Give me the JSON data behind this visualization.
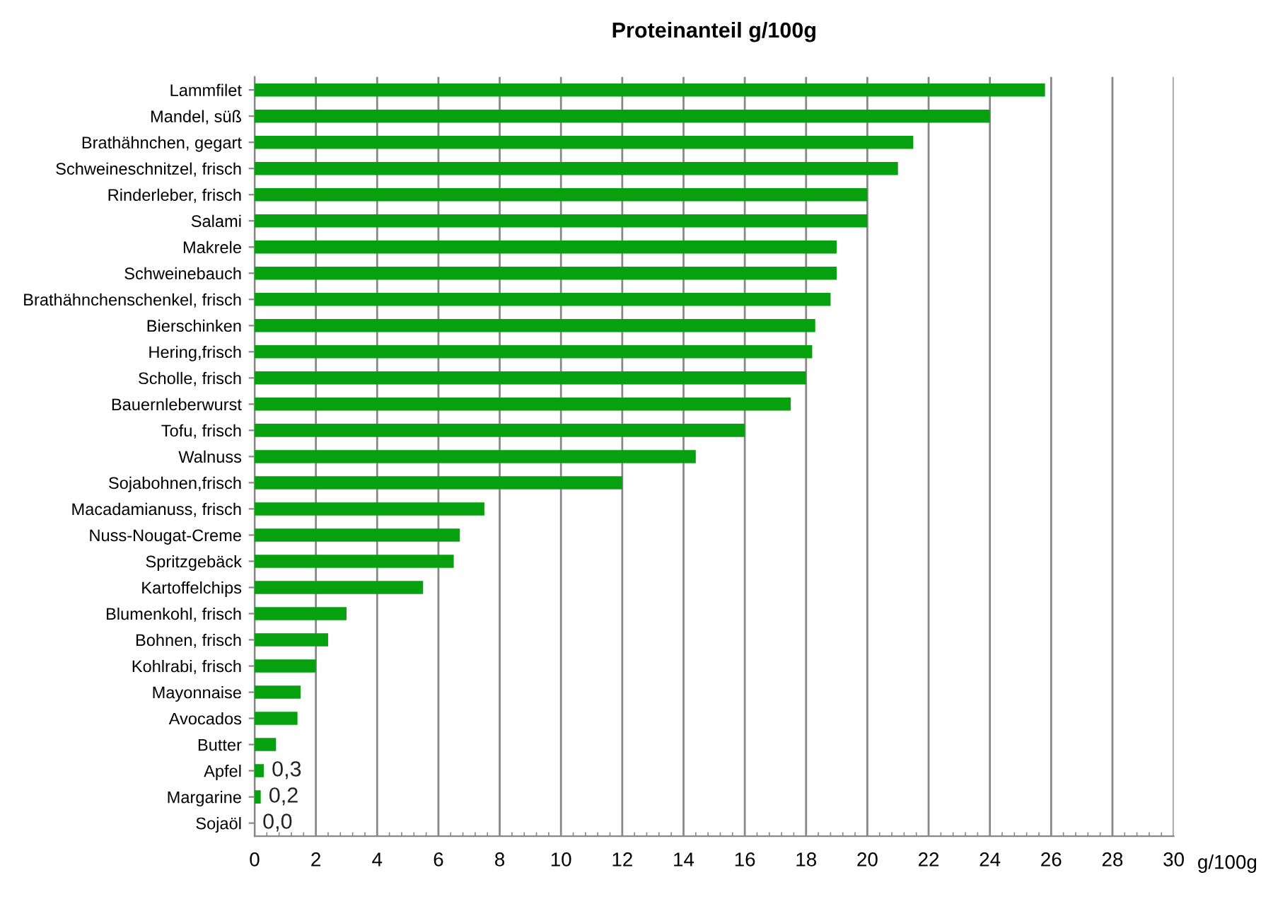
{
  "chart_data": {
    "type": "bar",
    "orientation": "horizontal",
    "title": "Proteinanteil g/100g",
    "xlabel": "g/100g",
    "categories": [
      "Lammfilet",
      "Mandel, süß",
      "Brathähnchen, gegart",
      "Schweineschnitzel, frisch",
      "Rinderleber, frisch",
      "Salami",
      "Makrele",
      "Schweinebauch",
      "Brathähnchenschenkel, frisch",
      "Bierschinken",
      "Hering,frisch",
      "Scholle, frisch",
      "Bauernleberwurst",
      "Tofu, frisch",
      "Walnuss",
      "Sojabohnen,frisch",
      "Macadamianuss, frisch",
      "Nuss-Nougat-Creme",
      "Spritzgebäck",
      "Kartoffelchips",
      "Blumenkohl, frisch",
      "Bohnen, frisch",
      "Kohlrabi, frisch",
      "Mayonnaise",
      "Avocados",
      "Butter",
      "Apfel",
      "Margarine",
      "Sojaöl"
    ],
    "values": [
      25.8,
      24.0,
      21.5,
      21.0,
      20.0,
      20.0,
      19.0,
      19.0,
      18.8,
      18.3,
      18.2,
      18.0,
      17.5,
      16.0,
      14.4,
      12.0,
      7.5,
      6.7,
      6.5,
      5.5,
      3.0,
      2.4,
      2.0,
      1.5,
      1.4,
      0.7,
      0.3,
      0.2,
      0.0
    ],
    "value_labels": [
      null,
      null,
      null,
      null,
      null,
      null,
      null,
      null,
      null,
      null,
      null,
      null,
      null,
      null,
      null,
      null,
      null,
      null,
      null,
      null,
      null,
      null,
      null,
      null,
      null,
      null,
      "0,3",
      "0,2",
      "0,0"
    ],
    "color": "#07a00e",
    "xlim": [
      0,
      30
    ],
    "xticks": [
      0,
      2,
      4,
      6,
      8,
      10,
      12,
      14,
      16,
      18,
      20,
      22,
      24,
      26,
      28,
      30
    ],
    "grid": "x"
  }
}
